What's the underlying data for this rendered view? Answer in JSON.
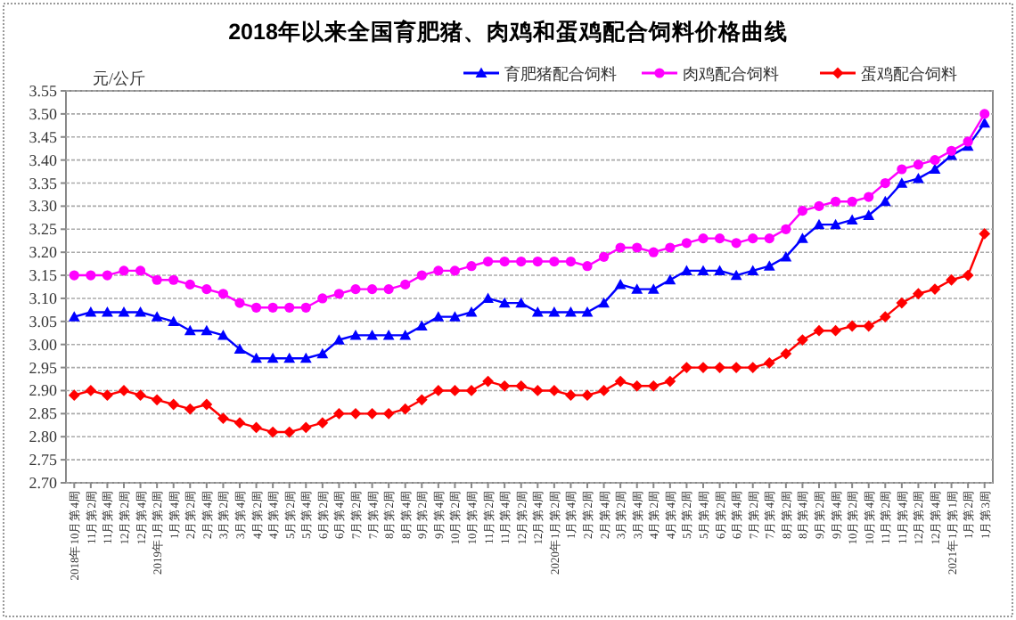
{
  "chart_data": {
    "type": "line",
    "title": "2018年以来全国育肥猪、肉鸡和蛋鸡配合饲料价格曲线",
    "ylabel": "元/公斤",
    "categories": [
      "2018年10月第4周",
      "11月第2周",
      "11月第4周",
      "12月第2周",
      "12月第4周",
      "2019年1月第2周",
      "1月第4周",
      "2月第2周",
      "2月第4周",
      "3月第2周",
      "3月第4周",
      "4月第2周",
      "4月第4周",
      "5月第2周",
      "5月第4周",
      "6月第2周",
      "6月第4周",
      "7月第2周",
      "7月第4周",
      "8月第2周",
      "8月第4周",
      "9月第2周",
      "9月第4周",
      "10月第2周",
      "10月第4周",
      "11月第2周",
      "11月第4周",
      "12月第2周",
      "12月第4周",
      "2020年1月第2周",
      "1月第4周",
      "2月第2周",
      "2月第4周",
      "3月第2周",
      "3月第4周",
      "4月第2周",
      "4月第4周",
      "5月第2周",
      "5月第4周",
      "6月第2周",
      "6月第4周",
      "7月第2周",
      "7月第4周",
      "8月第2周",
      "8月第4周",
      "9月第2周",
      "9月第4周",
      "10月第2周",
      "10月第4周",
      "11月第2周",
      "11月第4周",
      "12月第2周",
      "12月第4周",
      "2021年1月第1周",
      "1月第2周",
      "1月第3周"
    ],
    "series": [
      {
        "name": "育肥猪配合饲料",
        "color": "#0000ff",
        "marker": "triangle",
        "values": [
          3.06,
          3.07,
          3.07,
          3.07,
          3.07,
          3.06,
          3.05,
          3.03,
          3.03,
          3.02,
          2.99,
          2.97,
          2.97,
          2.97,
          2.97,
          2.98,
          3.01,
          3.02,
          3.02,
          3.02,
          3.02,
          3.04,
          3.06,
          3.06,
          3.07,
          3.1,
          3.09,
          3.09,
          3.07,
          3.07,
          3.07,
          3.07,
          3.09,
          3.13,
          3.12,
          3.12,
          3.14,
          3.16,
          3.16,
          3.16,
          3.15,
          3.16,
          3.17,
          3.19,
          3.23,
          3.26,
          3.26,
          3.27,
          3.28,
          3.31,
          3.35,
          3.36,
          3.38,
          3.41,
          3.43,
          3.48
        ]
      },
      {
        "name": "肉鸡配合饲料",
        "color": "#ff00ff",
        "marker": "circle",
        "values": [
          3.15,
          3.15,
          3.15,
          3.16,
          3.16,
          3.14,
          3.14,
          3.13,
          3.12,
          3.11,
          3.09,
          3.08,
          3.08,
          3.08,
          3.08,
          3.1,
          3.11,
          3.12,
          3.12,
          3.12,
          3.13,
          3.15,
          3.16,
          3.16,
          3.17,
          3.18,
          3.18,
          3.18,
          3.18,
          3.18,
          3.18,
          3.17,
          3.19,
          3.21,
          3.21,
          3.2,
          3.21,
          3.22,
          3.23,
          3.23,
          3.22,
          3.23,
          3.23,
          3.25,
          3.29,
          3.3,
          3.31,
          3.31,
          3.32,
          3.35,
          3.38,
          3.39,
          3.4,
          3.42,
          3.44,
          3.5
        ]
      },
      {
        "name": "蛋鸡配合饲料",
        "color": "#ff0000",
        "marker": "diamond",
        "values": [
          2.89,
          2.9,
          2.89,
          2.9,
          2.89,
          2.88,
          2.87,
          2.86,
          2.87,
          2.84,
          2.83,
          2.82,
          2.81,
          2.81,
          2.82,
          2.83,
          2.85,
          2.85,
          2.85,
          2.85,
          2.86,
          2.88,
          2.9,
          2.9,
          2.9,
          2.92,
          2.91,
          2.91,
          2.9,
          2.9,
          2.89,
          2.89,
          2.9,
          2.92,
          2.91,
          2.91,
          2.92,
          2.95,
          2.95,
          2.95,
          2.95,
          2.95,
          2.96,
          2.98,
          3.01,
          3.03,
          3.03,
          3.04,
          3.04,
          3.06,
          3.09,
          3.11,
          3.12,
          3.14,
          3.15,
          3.24
        ]
      }
    ],
    "ylim": [
      2.7,
      3.55
    ],
    "yticks": [
      {
        "value": 2.7,
        "label": "2.70"
      },
      2.75,
      {
        "value": 2.8,
        "label": "2.80"
      },
      2.85,
      {
        "value": 2.9,
        "label": "2.90"
      },
      2.95,
      {
        "value": 3,
        "label": "3.00"
      },
      3.05,
      {
        "value": 3.1,
        "label": "3.10"
      },
      3.15,
      {
        "value": 3.2,
        "label": "3.20"
      },
      3.25,
      {
        "value": 3.3,
        "label": "3.30"
      },
      3.35,
      {
        "value": 3.4,
        "label": "3.40"
      },
      3.45,
      {
        "value": 3.5,
        "label": "3.50"
      },
      3.55
    ],
    "grid": "y",
    "legend": "top right",
    "line_style": "solid"
  }
}
